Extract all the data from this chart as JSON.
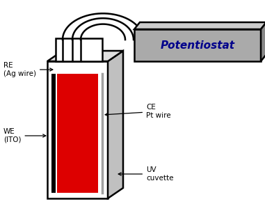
{
  "bg_color": "#ffffff",
  "potentiostat_text": "Potentiostat",
  "potentiostat_face_color": "#aaaaaa",
  "potentiostat_top_color": "#cccccc",
  "potentiostat_right_color": "#888888",
  "potentiostat_text_color": "#00008B",
  "cuvette_outline_color": "#000000",
  "cuvette_white": "#ffffff",
  "cuvette_gray_side": "#c0c0c0",
  "red_fill_color": "#dd0000",
  "black": "#000000",
  "gray_wire_color": "#a0a0a0",
  "label_RE": "RE\n(Ag wire)",
  "label_CE": "CE\nPt wire",
  "label_WE": "WE\n(ITO)",
  "label_UV": "UV\ncuvette",
  "figw": 3.81,
  "figh": 3.06,
  "dpi": 100
}
